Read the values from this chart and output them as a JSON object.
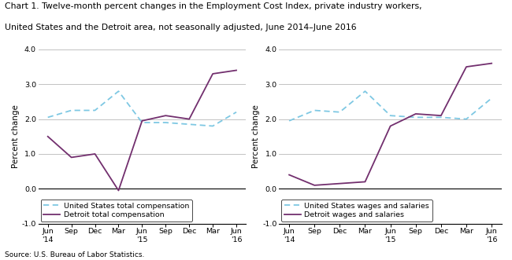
{
  "title_line1": "Chart 1. Twelve-month percent changes in the Employment Cost Index, private industry workers,",
  "title_line2": "United States and the Detroit area, not seasonally adjusted, June 2014–June 2016",
  "source": "Source: U.S. Bureau of Labor Statistics.",
  "x_labels": [
    "Jun\n'14",
    "Sep",
    "Dec",
    "Mar",
    "Jun\n'15",
    "Sep",
    "Dec",
    "Mar",
    "Jun\n'16"
  ],
  "left": {
    "ylabel": "Percent change",
    "us_label": "United States total compensation",
    "detroit_label": "Detroit total compensation",
    "us_values": [
      2.05,
      2.25,
      2.25,
      2.8,
      1.9,
      1.9,
      1.85,
      1.8,
      2.2
    ],
    "detroit_values": [
      1.5,
      0.9,
      1.0,
      -0.05,
      1.95,
      2.1,
      2.0,
      3.3,
      3.4
    ],
    "ylim": [
      -1.0,
      4.0
    ],
    "yticks": [
      -1.0,
      0.0,
      1.0,
      2.0,
      3.0,
      4.0
    ]
  },
  "right": {
    "ylabel": "Percent change",
    "us_label": "United States wages and salaries",
    "detroit_label": "Detroit wages and salaries",
    "us_values": [
      1.95,
      2.25,
      2.2,
      2.8,
      2.1,
      2.05,
      2.05,
      2.0,
      2.6
    ],
    "detroit_values": [
      0.4,
      0.1,
      0.15,
      0.2,
      1.8,
      2.15,
      2.1,
      3.5,
      3.6
    ],
    "ylim": [
      -1.0,
      4.0
    ],
    "yticks": [
      -1.0,
      0.0,
      1.0,
      2.0,
      3.0,
      4.0
    ]
  },
  "us_color": "#7EC8E3",
  "detroit_color": "#722F6E",
  "grid_color": "#AAAAAA",
  "bg_color": "#FFFFFF",
  "title_fontsize": 7.8,
  "ylabel_fontsize": 7.5,
  "tick_fontsize": 6.8,
  "legend_fontsize": 6.8,
  "source_fontsize": 6.5
}
